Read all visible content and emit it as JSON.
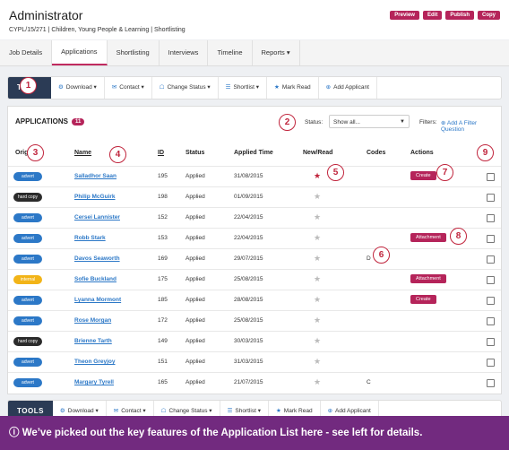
{
  "header": {
    "title": "Administrator",
    "subtitle": "CYPL/15/271  |  Children, Young People & Learning  |  Shortlisting",
    "buttons": [
      "Preview",
      "Edit",
      "Publish",
      "Copy"
    ]
  },
  "nav_tabs": [
    "Job Details",
    "Applications",
    "Shortlisting",
    "Interviews",
    "Timeline",
    "Reports ▾"
  ],
  "active_tab": 1,
  "tools": {
    "label_top": "TO",
    "label_bottom": "TOOLS",
    "items": [
      {
        "icon": "⚙",
        "label": "Download ▾"
      },
      {
        "icon": "✉",
        "label": "Contact ▾"
      },
      {
        "icon": "☖",
        "label": "Change Status ▾"
      },
      {
        "icon": "☰",
        "label": "Shortlist ▾"
      },
      {
        "icon": "★",
        "label": "Mark Read"
      },
      {
        "icon": "⊕",
        "label": "Add Applicant"
      }
    ]
  },
  "applications": {
    "title": "APPLICATIONS",
    "count": "11",
    "status_label": "Status:",
    "status_value": "Show all...",
    "filters_label": "Filters:",
    "add_filter": "⊕ Add A Filter Question",
    "columns": [
      "Origin",
      "Name",
      "ID",
      "Status",
      "Applied Time",
      "New/Read",
      "Codes",
      "Actions"
    ],
    "rows": [
      {
        "origin": "advert",
        "name": "Salladhor Saan",
        "id": "195",
        "status": "Applied",
        "time": "31/08/2015",
        "read": "new",
        "code": "",
        "action": "Create"
      },
      {
        "origin": "hard copy",
        "name": "Philip McGuirk",
        "id": "198",
        "status": "Applied",
        "time": "01/09/2015",
        "read": "read",
        "code": "",
        "action": ""
      },
      {
        "origin": "advert",
        "name": "Cersei Lannister",
        "id": "152",
        "status": "Applied",
        "time": "22/04/2015",
        "read": "read",
        "code": "",
        "action": ""
      },
      {
        "origin": "advert",
        "name": "Robb Stark",
        "id": "153",
        "status": "Applied",
        "time": "22/04/2015",
        "read": "read",
        "code": "",
        "action": "Attachment"
      },
      {
        "origin": "advert",
        "name": "Davos Seaworth",
        "id": "169",
        "status": "Applied",
        "time": "29/07/2015",
        "read": "read",
        "code": "D",
        "action": ""
      },
      {
        "origin": "internal",
        "name": "Sofie Buckland",
        "id": "175",
        "status": "Applied",
        "time": "25/08/2015",
        "read": "read",
        "code": "",
        "action": "Attachment"
      },
      {
        "origin": "advert",
        "name": "Lyanna Mormont",
        "id": "185",
        "status": "Applied",
        "time": "28/08/2015",
        "read": "read",
        "code": "",
        "action": "Create"
      },
      {
        "origin": "advert",
        "name": "Rose Morgan",
        "id": "172",
        "status": "Applied",
        "time": "25/08/2015",
        "read": "read",
        "code": "",
        "action": ""
      },
      {
        "origin": "hard copy",
        "name": "Brienne Tarth",
        "id": "149",
        "status": "Applied",
        "time": "30/03/2015",
        "read": "read",
        "code": "",
        "action": ""
      },
      {
        "origin": "advert",
        "name": "Theon Greyjoy",
        "id": "151",
        "status": "Applied",
        "time": "31/03/2015",
        "read": "read",
        "code": "",
        "action": ""
      },
      {
        "origin": "advert",
        "name": "Margary Tyrell",
        "id": "165",
        "status": "Applied",
        "time": "21/07/2015",
        "read": "read",
        "code": "C",
        "action": ""
      }
    ]
  },
  "origin_colors": {
    "advert": "#2c78c7",
    "hard copy": "#2b2b2b",
    "internal": "#f2b418"
  },
  "callouts": [
    "1",
    "2",
    "3",
    "4",
    "5",
    "6",
    "7",
    "8",
    "9"
  ],
  "footer": "ⓘ We’ve picked out the key features of the Application List here - see left for details."
}
